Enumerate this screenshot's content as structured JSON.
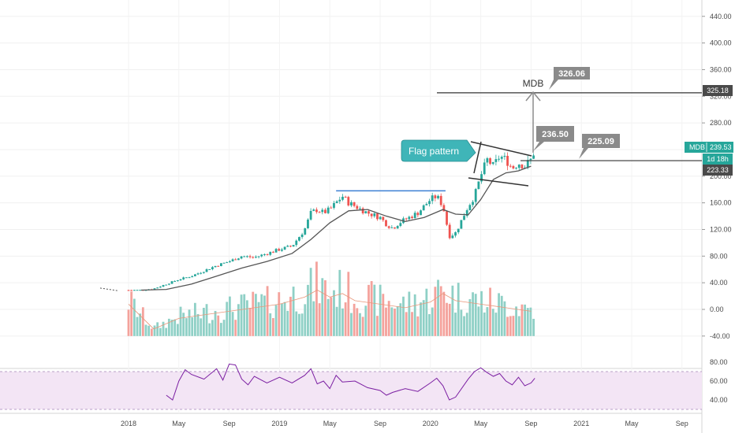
{
  "chart_data": {
    "type": "candlestick",
    "symbol": "MDB",
    "price_axis": {
      "ticks": [
        "440.00",
        "400.00",
        "360.00",
        "320.00",
        "280.00",
        "240.00",
        "200.00",
        "160.00",
        "120.00",
        "80.00",
        "40.00",
        "0.00",
        "-40.00"
      ],
      "values": [
        440,
        400,
        360,
        320,
        280,
        240,
        200,
        160,
        120,
        80,
        40,
        0,
        -40
      ]
    },
    "rsi_axis": {
      "ticks": [
        "80.00",
        "60.00",
        "40.00"
      ],
      "values": [
        80,
        60,
        40
      ]
    },
    "time_axis": {
      "labels": [
        "2018",
        "May",
        "Sep",
        "2019",
        "May",
        "Sep",
        "2020",
        "May",
        "Sep",
        "2021",
        "May",
        "Sep"
      ],
      "months": [
        0,
        4,
        8,
        12,
        16,
        20,
        24,
        28,
        32,
        36,
        40,
        44
      ]
    },
    "price_tags": {
      "resistance": "325.18",
      "last_label": "MDB",
      "last": "239.53",
      "countdown": "1d 18h",
      "support": "223.33"
    },
    "annotations": {
      "flag": "Flag pattern",
      "target_label": "MDB",
      "callout_target": "326.06",
      "callout_flag_top": "236.50",
      "callout_support": "225.09"
    },
    "levels": {
      "resistance": 325.18,
      "support": 223.33,
      "neckline": 178
    },
    "colors": {
      "up": "#26a69a",
      "down": "#ef5350",
      "vol_up": "#8fd0c6",
      "vol_down": "#f4a29c",
      "rsi": "#7b1fa2",
      "rsi_band": "#f3e5f5",
      "tag": "#8a8a8a",
      "callout": "#3fb5b8",
      "last_tag": "#26a69a"
    },
    "price_series": [
      {
        "m": 0.0,
        "p": 29
      },
      {
        "m": 1.0,
        "p": 29
      },
      {
        "m": 2.0,
        "p": 31
      },
      {
        "m": 3.0,
        "p": 38
      },
      {
        "m": 4.0,
        "p": 45
      },
      {
        "m": 5.0,
        "p": 50
      },
      {
        "m": 6.0,
        "p": 58
      },
      {
        "m": 7.0,
        "p": 66
      },
      {
        "m": 8.0,
        "p": 72
      },
      {
        "m": 9.0,
        "p": 80
      },
      {
        "m": 10.0,
        "p": 78
      },
      {
        "m": 11.0,
        "p": 84
      },
      {
        "m": 12.0,
        "p": 90
      },
      {
        "m": 13.0,
        "p": 95
      },
      {
        "m": 14.0,
        "p": 120
      },
      {
        "m": 14.5,
        "p": 145
      },
      {
        "m": 15.0,
        "p": 150
      },
      {
        "m": 15.5,
        "p": 145
      },
      {
        "m": 16.0,
        "p": 150
      },
      {
        "m": 16.5,
        "p": 160
      },
      {
        "m": 17.0,
        "p": 170
      },
      {
        "m": 17.5,
        "p": 160
      },
      {
        "m": 18.0,
        "p": 155
      },
      {
        "m": 18.5,
        "p": 150
      },
      {
        "m": 19.0,
        "p": 145
      },
      {
        "m": 20.0,
        "p": 138
      },
      {
        "m": 20.5,
        "p": 128
      },
      {
        "m": 21.0,
        "p": 122
      },
      {
        "m": 21.5,
        "p": 130
      },
      {
        "m": 22.0,
        "p": 135
      },
      {
        "m": 22.5,
        "p": 140
      },
      {
        "m": 23.0,
        "p": 145
      },
      {
        "m": 23.5,
        "p": 155
      },
      {
        "m": 24.0,
        "p": 165
      },
      {
        "m": 24.5,
        "p": 170
      },
      {
        "m": 25.0,
        "p": 155
      },
      {
        "m": 25.5,
        "p": 110
      },
      {
        "m": 26.0,
        "p": 115
      },
      {
        "m": 26.5,
        "p": 135
      },
      {
        "m": 27.0,
        "p": 155
      },
      {
        "m": 27.5,
        "p": 170
      },
      {
        "m": 28.0,
        "p": 200
      },
      {
        "m": 28.5,
        "p": 225
      },
      {
        "m": 29.0,
        "p": 215
      },
      {
        "m": 29.5,
        "p": 230
      },
      {
        "m": 30.0,
        "p": 225
      },
      {
        "m": 30.5,
        "p": 212
      },
      {
        "m": 31.0,
        "p": 220
      },
      {
        "m": 31.5,
        "p": 215
      },
      {
        "m": 32.0,
        "p": 225
      },
      {
        "m": 32.3,
        "p": 239.5
      }
    ],
    "ma_series": [
      {
        "m": 1.0,
        "p": 29
      },
      {
        "m": 3.0,
        "p": 30
      },
      {
        "m": 5.0,
        "p": 38
      },
      {
        "m": 7.0,
        "p": 50
      },
      {
        "m": 9.0,
        "p": 62
      },
      {
        "m": 11.0,
        "p": 72
      },
      {
        "m": 13.0,
        "p": 84
      },
      {
        "m": 14.5,
        "p": 105
      },
      {
        "m": 16.0,
        "p": 130
      },
      {
        "m": 17.5,
        "p": 148
      },
      {
        "m": 19.0,
        "p": 150
      },
      {
        "m": 20.5,
        "p": 140
      },
      {
        "m": 22.0,
        "p": 132
      },
      {
        "m": 23.5,
        "p": 138
      },
      {
        "m": 25.0,
        "p": 150
      },
      {
        "m": 26.0,
        "p": 143
      },
      {
        "m": 27.0,
        "p": 142
      },
      {
        "m": 28.0,
        "p": 165
      },
      {
        "m": 29.0,
        "p": 195
      },
      {
        "m": 30.0,
        "p": 205
      },
      {
        "m": 31.0,
        "p": 208
      },
      {
        "m": 32.0,
        "p": 215
      }
    ],
    "volume_series": [
      {
        "m": 0.0,
        "v": 45
      },
      {
        "m": 2.0,
        "v": 10
      },
      {
        "m": 4.0,
        "v": 25
      },
      {
        "m": 6.0,
        "v": 30
      },
      {
        "m": 8.0,
        "v": 35
      },
      {
        "m": 10.0,
        "v": 40
      },
      {
        "m": 12.0,
        "v": 45
      },
      {
        "m": 14.0,
        "v": 55
      },
      {
        "m": 15.0,
        "v": 65
      },
      {
        "m": 16.0,
        "v": 55
      },
      {
        "m": 17.0,
        "v": 60
      },
      {
        "m": 18.0,
        "v": 50
      },
      {
        "m": 20.0,
        "v": 45
      },
      {
        "m": 22.0,
        "v": 40
      },
      {
        "m": 24.0,
        "v": 48
      },
      {
        "m": 25.0,
        "v": 60
      },
      {
        "m": 26.0,
        "v": 50
      },
      {
        "m": 28.0,
        "v": 45
      },
      {
        "m": 30.0,
        "v": 40
      },
      {
        "m": 32.0,
        "v": 35
      }
    ],
    "rsi_series": [
      {
        "m": 3.0,
        "r": 45
      },
      {
        "m": 3.5,
        "r": 40
      },
      {
        "m": 4.0,
        "r": 60
      },
      {
        "m": 4.5,
        "r": 72
      },
      {
        "m": 5.0,
        "r": 67
      },
      {
        "m": 6.0,
        "r": 62
      },
      {
        "m": 7.0,
        "r": 73
      },
      {
        "m": 7.5,
        "r": 61
      },
      {
        "m": 8.0,
        "r": 78
      },
      {
        "m": 8.5,
        "r": 77
      },
      {
        "m": 9.0,
        "r": 62
      },
      {
        "m": 9.5,
        "r": 56
      },
      {
        "m": 10.0,
        "r": 65
      },
      {
        "m": 11.0,
        "r": 58
      },
      {
        "m": 12.0,
        "r": 64
      },
      {
        "m": 13.0,
        "r": 58
      },
      {
        "m": 14.0,
        "r": 66
      },
      {
        "m": 14.5,
        "r": 73
      },
      {
        "m": 15.0,
        "r": 57
      },
      {
        "m": 15.5,
        "r": 60
      },
      {
        "m": 16.0,
        "r": 52
      },
      {
        "m": 16.5,
        "r": 66
      },
      {
        "m": 17.0,
        "r": 59
      },
      {
        "m": 18.0,
        "r": 60
      },
      {
        "m": 19.0,
        "r": 53
      },
      {
        "m": 20.0,
        "r": 50
      },
      {
        "m": 20.5,
        "r": 45
      },
      {
        "m": 21.0,
        "r": 48
      },
      {
        "m": 22.0,
        "r": 52
      },
      {
        "m": 23.0,
        "r": 49
      },
      {
        "m": 24.0,
        "r": 58
      },
      {
        "m": 24.5,
        "r": 63
      },
      {
        "m": 25.0,
        "r": 55
      },
      {
        "m": 25.5,
        "r": 40
      },
      {
        "m": 26.0,
        "r": 43
      },
      {
        "m": 27.0,
        "r": 62
      },
      {
        "m": 27.5,
        "r": 70
      },
      {
        "m": 28.0,
        "r": 74
      },
      {
        "m": 28.5,
        "r": 69
      },
      {
        "m": 29.0,
        "r": 65
      },
      {
        "m": 29.5,
        "r": 68
      },
      {
        "m": 30.0,
        "r": 60
      },
      {
        "m": 30.5,
        "r": 56
      },
      {
        "m": 31.0,
        "r": 64
      },
      {
        "m": 31.5,
        "r": 55
      },
      {
        "m": 32.0,
        "r": 58
      },
      {
        "m": 32.3,
        "r": 63
      }
    ]
  }
}
